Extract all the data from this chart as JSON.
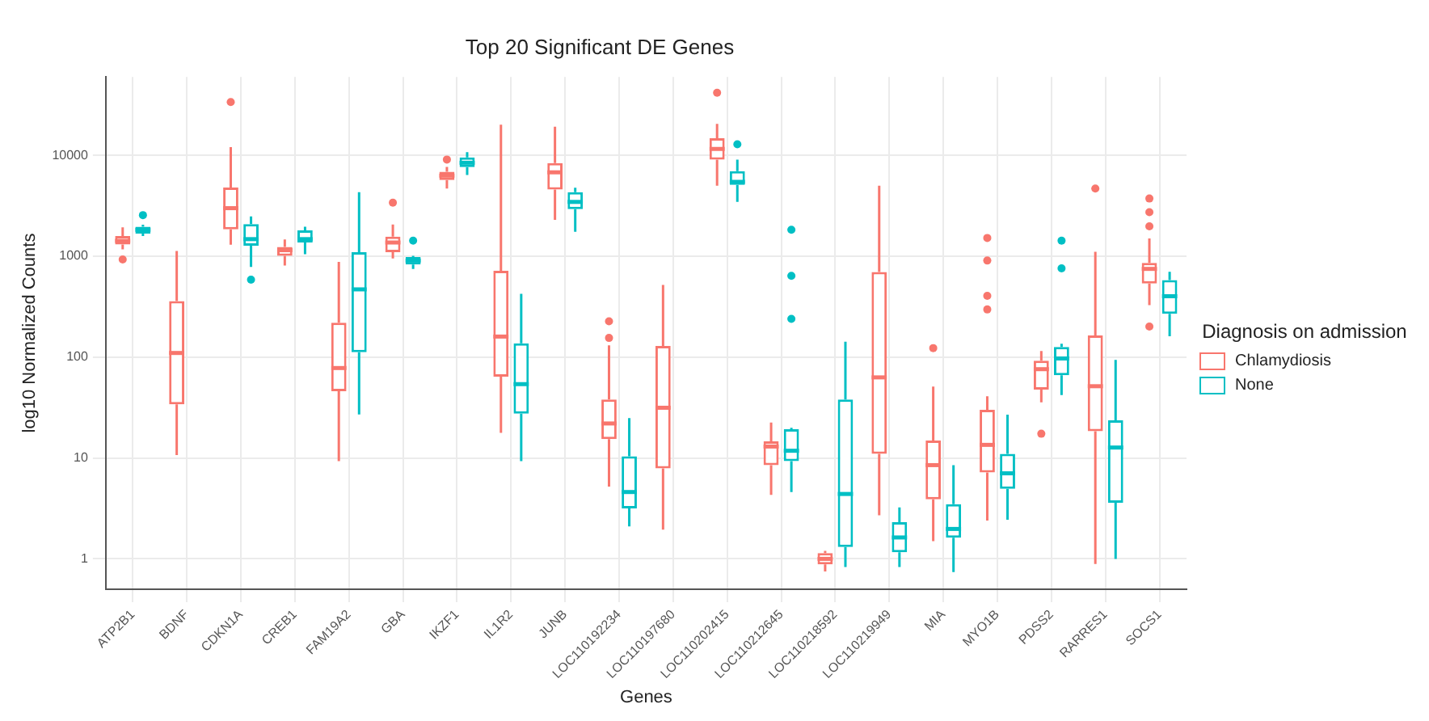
{
  "chart_data": {
    "type": "box",
    "title": "Top 20 Significant DE Genes",
    "xlabel": "Genes",
    "ylabel": "log10 Normalized Counts",
    "legend_title": "Diagnosis on admission",
    "legend": "right",
    "grid": true,
    "log": "y",
    "ylim": [
      0.5,
      60000
    ],
    "yticks": [
      {
        "value": 1,
        "label": "1"
      },
      {
        "value": 10,
        "label": "10"
      },
      {
        "value": 100,
        "label": "100"
      },
      {
        "value": 1000,
        "label": "1000"
      },
      {
        "value": 10000,
        "label": "10000"
      }
    ],
    "categories": [
      "ATP2B1",
      "BDNF",
      "CDKN1A",
      "CREB1",
      "FAM19A2",
      "GBA",
      "IKZF1",
      "IL1R2",
      "JUNB",
      "LOC110192234",
      "LOC110197680",
      "LOC110202415",
      "LOC110212645",
      "LOC110218592",
      "LOC110219949",
      "MIA",
      "MYO1B",
      "PDSS2",
      "RARRES1",
      "SOCS1"
    ],
    "series": [
      {
        "name": "Chlamydiosis",
        "color": "#f8766d",
        "boxes": [
          {
            "low": 1170,
            "q1": 1310,
            "median": 1420,
            "q3": 1590,
            "high": 1940,
            "outliers": [
              930
            ]
          },
          {
            "low": 10.7,
            "q1": 34,
            "median": 110,
            "q3": 360,
            "high": 1130
          },
          {
            "low": 1300,
            "q1": 1850,
            "median": 3000,
            "q3": 4800,
            "high": 12100,
            "outliers": [
              33800
            ]
          },
          {
            "low": 810,
            "q1": 1010,
            "median": 1150,
            "q3": 1240,
            "high": 1470
          },
          {
            "low": 9.3,
            "q1": 46,
            "median": 78,
            "q3": 220,
            "high": 880
          },
          {
            "low": 950,
            "q1": 1100,
            "median": 1370,
            "q3": 1570,
            "high": 2070,
            "outliers": [
              3400
            ]
          },
          {
            "low": 4700,
            "q1": 5700,
            "median": 6300,
            "q3": 6900,
            "high": 7700,
            "outliers": [
              9100
            ]
          },
          {
            "low": 17.8,
            "q1": 64,
            "median": 160,
            "q3": 720,
            "high": 20200
          },
          {
            "low": 2300,
            "q1": 4600,
            "median": 6800,
            "q3": 8400,
            "high": 19300
          },
          {
            "low": 5.2,
            "q1": 15.4,
            "median": 22,
            "q3": 38,
            "high": 131,
            "outliers": [
              155,
              227
            ]
          },
          {
            "low": 1.95,
            "q1": 7.9,
            "median": 31.5,
            "q3": 129,
            "high": 520
          },
          {
            "low": 5000,
            "q1": 9100,
            "median": 11600,
            "q3": 14800,
            "high": 20600,
            "outliers": [
              41800
            ]
          },
          {
            "low": 4.3,
            "q1": 8.5,
            "median": 13,
            "q3": 14.6,
            "high": 22.5
          },
          {
            "low": 0.75,
            "q1": 0.88,
            "median": 1,
            "q3": 1.14,
            "high": 1.2
          },
          {
            "low": 2.7,
            "q1": 11,
            "median": 63,
            "q3": 700,
            "high": 5000
          },
          {
            "low": 1.5,
            "q1": 3.9,
            "median": 8.5,
            "q3": 14.9,
            "high": 51,
            "outliers": [
              123
            ]
          },
          {
            "low": 2.4,
            "q1": 7.2,
            "median": 13.5,
            "q3": 30,
            "high": 41,
            "outliers": [
              297,
              406,
              907,
              1520
            ]
          },
          {
            "low": 35.6,
            "q1": 47.6,
            "median": 76,
            "q3": 92,
            "high": 115,
            "outliers": [
              17.4
            ]
          },
          {
            "low": 0.89,
            "q1": 18.4,
            "median": 51.5,
            "q3": 164,
            "high": 1110,
            "outliers": [
              4700
            ]
          },
          {
            "low": 328,
            "q1": 537,
            "median": 750,
            "q3": 858,
            "high": 1500,
            "outliers": [
              201,
              1980,
              2740,
              3740
            ]
          }
        ]
      },
      {
        "name": "None",
        "color": "#00bfc4",
        "boxes": [
          {
            "low": 1590,
            "q1": 1680,
            "median": 1830,
            "q3": 1960,
            "high": 2060,
            "outliers": [
              2560
            ]
          },
          null,
          {
            "low": 785,
            "q1": 1270,
            "median": 1480,
            "q3": 2090,
            "high": 2480,
            "outliers": [
              586
            ]
          },
          {
            "low": 1050,
            "q1": 1370,
            "median": 1480,
            "q3": 1810,
            "high": 1960
          },
          {
            "low": 27,
            "q1": 112,
            "median": 470,
            "q3": 1100,
            "high": 4330
          },
          {
            "low": 750,
            "q1": 830,
            "median": 907,
            "q3": 981,
            "high": 1010,
            "outliers": [
              1430
            ]
          },
          {
            "low": 6400,
            "q1": 7650,
            "median": 8460,
            "q3": 9570,
            "high": 10800
          },
          {
            "low": 9.3,
            "q1": 27.5,
            "median": 54,
            "q3": 137,
            "high": 425
          },
          {
            "low": 1750,
            "q1": 2930,
            "median": 3460,
            "q3": 4330,
            "high": 4790
          },
          {
            "low": 2.1,
            "q1": 3.16,
            "median": 4.6,
            "q3": 10.4,
            "high": 24.9
          },
          null,
          {
            "low": 3460,
            "q1": 5100,
            "median": 5470,
            "q3": 7000,
            "high": 9100,
            "outliers": [
              12900
            ]
          },
          {
            "low": 4.6,
            "q1": 9.3,
            "median": 11.8,
            "q3": 19.3,
            "high": 19.9,
            "outliers": [
              240,
              641,
              1830
            ]
          },
          {
            "low": 0.83,
            "q1": 1.31,
            "median": 4.4,
            "q3": 38,
            "high": 142
          },
          {
            "low": 0.83,
            "q1": 1.16,
            "median": 1.63,
            "q3": 2.31,
            "high": 3.23
          },
          {
            "low": 0.74,
            "q1": 1.62,
            "median": 1.98,
            "q3": 3.49,
            "high": 8.5
          },
          {
            "low": 2.44,
            "q1": 4.94,
            "median": 7.05,
            "q3": 11,
            "high": 26.9
          },
          {
            "low": 42,
            "q1": 66,
            "median": 97,
            "q3": 126,
            "high": 136,
            "outliers": [
              759,
              1430
            ]
          },
          {
            "low": 1,
            "q1": 3.6,
            "median": 12.7,
            "q3": 23.6,
            "high": 94
          },
          {
            "low": 161,
            "q1": 269,
            "median": 402,
            "q3": 580,
            "high": 702
          }
        ]
      }
    ]
  }
}
